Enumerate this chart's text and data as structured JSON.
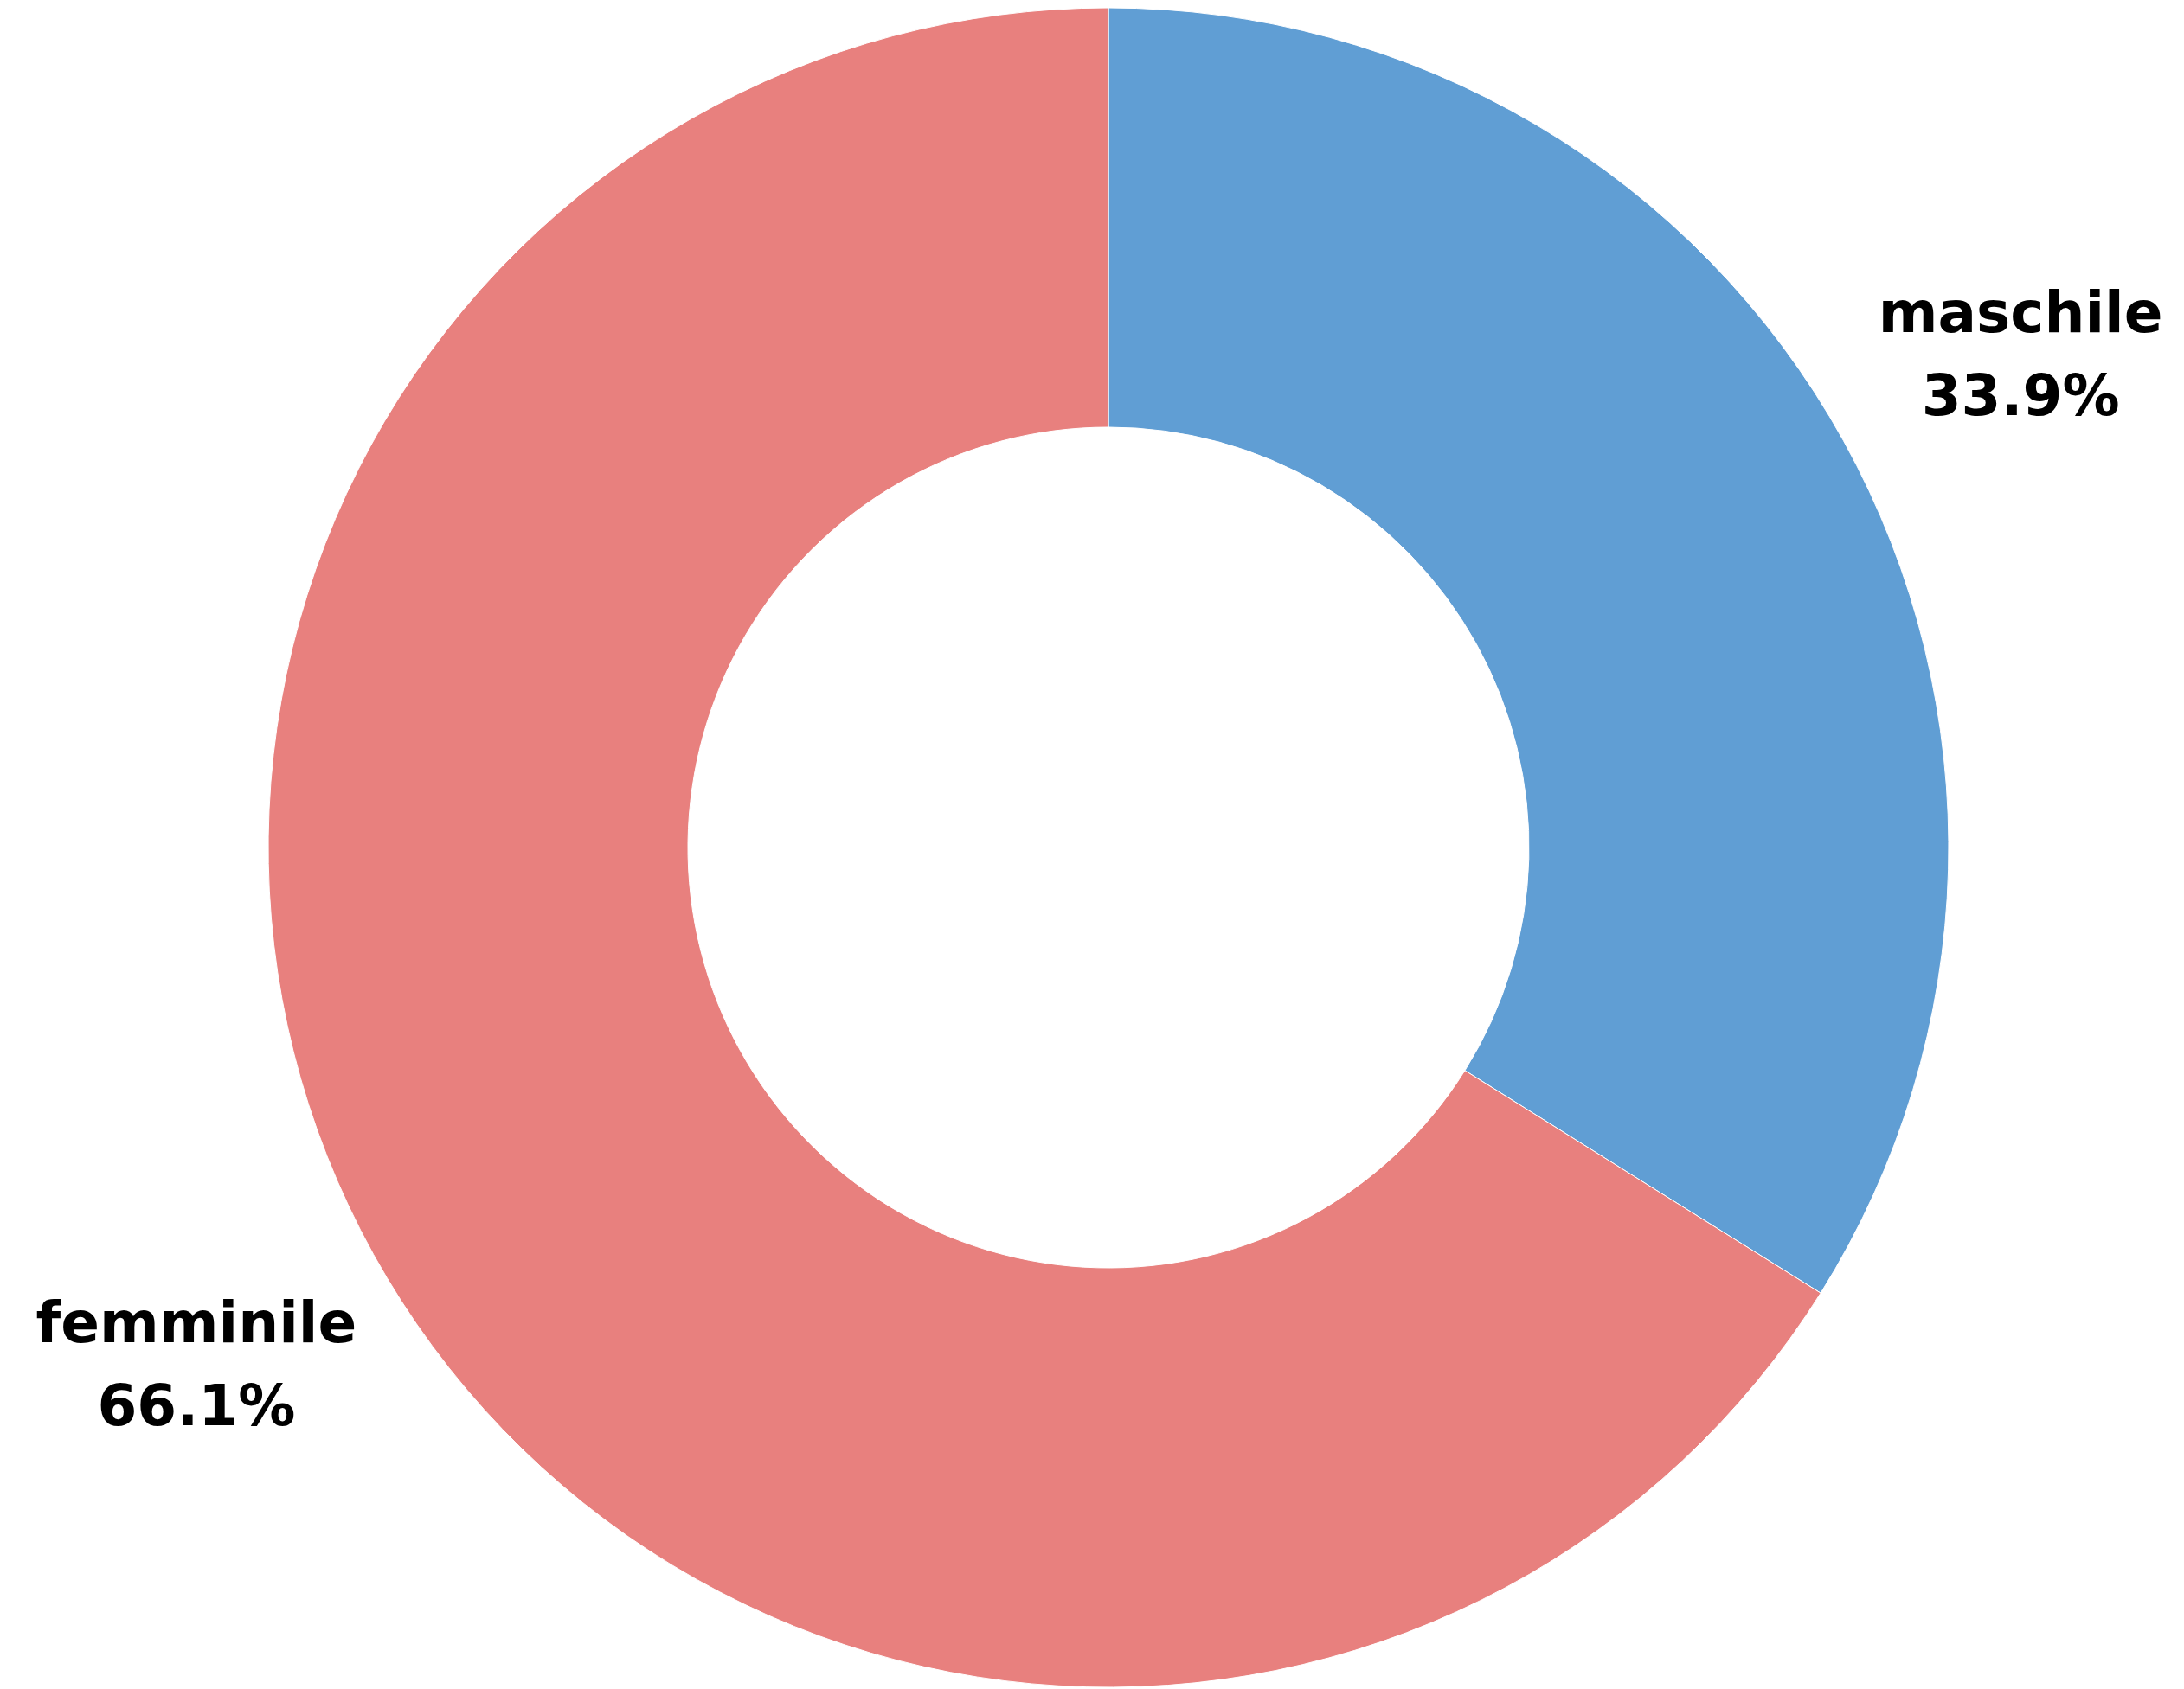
{
  "chart_data": {
    "type": "donut",
    "categories": [
      "maschile",
      "femminile"
    ],
    "values": [
      33.9,
      66.1
    ],
    "colors": [
      "#609ed4",
      "#e8807e"
    ],
    "value_labels": [
      "33.9%",
      "66.1%"
    ]
  }
}
